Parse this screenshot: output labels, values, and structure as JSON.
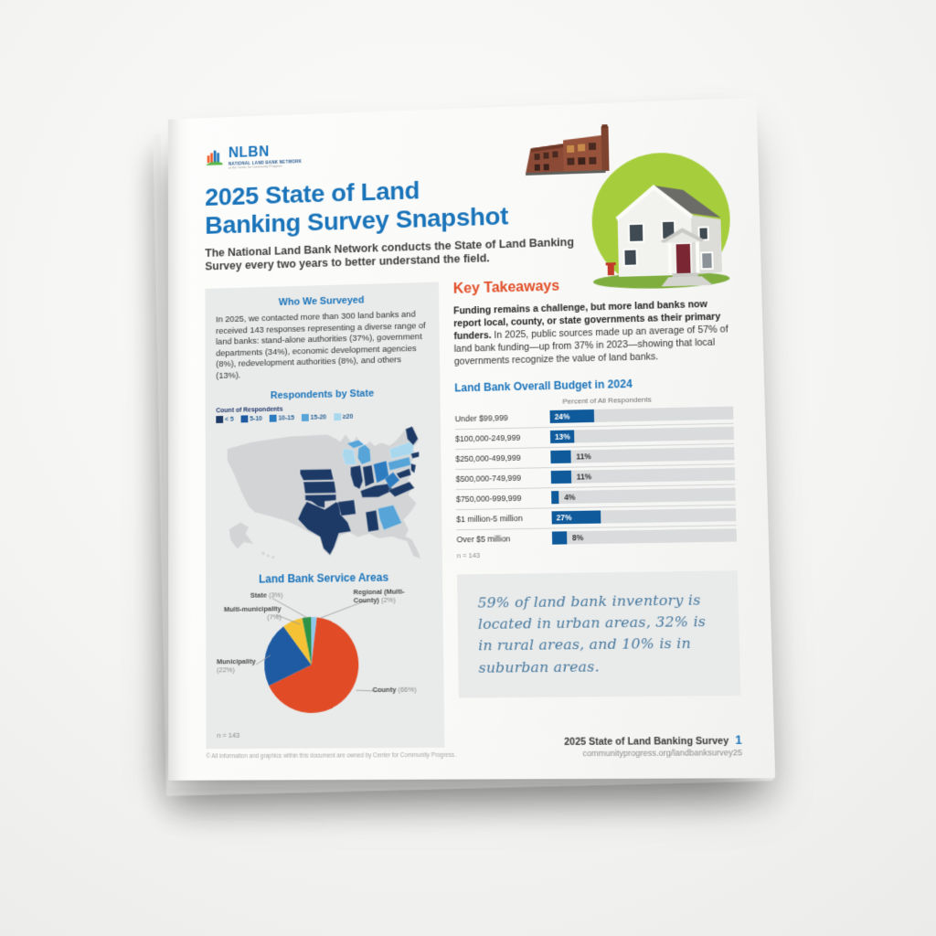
{
  "colors": {
    "brand_blue": "#1a74ba",
    "accent_orange": "#e14e28",
    "navy": "#20386b",
    "bar_blue": "#0e5a9b",
    "panel_gray": "#e9eaea",
    "green_circle": "#a6ce3c",
    "quote_blue": "#47799e"
  },
  "logo": {
    "name": "NLBN",
    "tagline": "NATIONAL LAND BANK NETWORK",
    "subtagline": "at the Center for Community Progress"
  },
  "header": {
    "title_line1": "2025 State of Land",
    "title_line2": "Banking Survey Snapshot",
    "intro": "The National Land Bank Network conducts the State of Land Banking Survey every two years to better understand the field."
  },
  "who": {
    "heading": "Who We Surveyed",
    "body": "In 2025, we contacted more than 300 land banks and received 143 responses representing a diverse range of land banks: stand-alone authorities (37%), government departments (34%), economic development agencies (8%), redevelopment authorities (8%), and others (13%)."
  },
  "key_takeaways": {
    "heading": "Key Takeaways",
    "lead_bold": "Funding remains a challenge, but more land banks now report local, county, or state governments as their primary funders.",
    "lead_rest": " In 2025, public sources made up an average of 57% of land bank funding—up from 37% in 2023—showing that local governments recognize the value of land banks."
  },
  "quote": {
    "text": "59% of land bank inventory is located in urban areas, 32% is in rural areas, and 10% is in suburban areas."
  },
  "footer": {
    "doc_title": "2025 State of Land Banking Survey",
    "page_number": "1",
    "url": "communityprogress.org/landbanksurvey25",
    "copyright": "© All information and graphics within this document are owned by Center for Community Progress."
  },
  "chart_data": [
    {
      "id": "respondents_map",
      "type": "heatmap",
      "title": "Respondents by State",
      "legend_title": "Count of Respondents",
      "legend": [
        {
          "label": "< 5",
          "color": "#1d3a66"
        },
        {
          "label": "5-10",
          "color": "#1e5ba3"
        },
        {
          "label": "10-15",
          "color": "#2e7cc0"
        },
        {
          "label": "15-20",
          "color": "#56a4d8"
        },
        {
          "label": "≥20",
          "color": "#a8d7ee"
        }
      ],
      "default_color": "#d2d4d5",
      "states": [
        {
          "state": "NE",
          "level": 1
        },
        {
          "state": "KS",
          "level": 1
        },
        {
          "state": "OK",
          "level": 1
        },
        {
          "state": "TX",
          "level": 1
        },
        {
          "state": "AR",
          "level": 1
        },
        {
          "state": "IL",
          "level": 1
        },
        {
          "state": "IN",
          "level": 1
        },
        {
          "state": "KY",
          "level": 1
        },
        {
          "state": "VA",
          "level": 1
        },
        {
          "state": "MD",
          "level": 1
        },
        {
          "state": "NJ",
          "level": 1
        },
        {
          "state": "CT",
          "level": 1
        },
        {
          "state": "ME",
          "level": 1
        },
        {
          "state": "AL",
          "level": 1
        },
        {
          "state": "OH",
          "level": 3
        },
        {
          "state": "WV",
          "level": 3
        },
        {
          "state": "MI",
          "level": 4
        },
        {
          "state": "GA",
          "level": 4
        },
        {
          "state": "PA",
          "level": 4
        },
        {
          "state": "NY",
          "level": 5
        },
        {
          "state": "WI",
          "level": 5
        }
      ]
    },
    {
      "id": "service_areas",
      "type": "pie",
      "title": "Land Bank Service Areas",
      "note": "n = 143",
      "slices": [
        {
          "label": "Regional (Multi-County)",
          "pct": 2,
          "color": "#8ec7e8"
        },
        {
          "label": "County",
          "pct": 66,
          "color": "#e14b26"
        },
        {
          "label": "Municipality",
          "pct": 22,
          "color": "#1e5ba3"
        },
        {
          "label": "Multi-municipality",
          "pct": 7,
          "color": "#f5c235"
        },
        {
          "label": "State",
          "pct": 3,
          "color": "#2f9347"
        }
      ]
    },
    {
      "id": "budget",
      "type": "bar",
      "title": "Land Bank Overall Budget in 2024",
      "xlabel": "Percent of All Respondents",
      "xlim": [
        0,
        100
      ],
      "note": "n = 143",
      "bar_color": "#0e5a9b",
      "categories": [
        "Under $99,999",
        "$100,000-249,999",
        "$250,000-499,999",
        "$500,000-749,999",
        "$750,000-999,999",
        "$1 million-5 million",
        "Over $5 million"
      ],
      "values": [
        24,
        13,
        11,
        11,
        4,
        27,
        8
      ]
    }
  ]
}
